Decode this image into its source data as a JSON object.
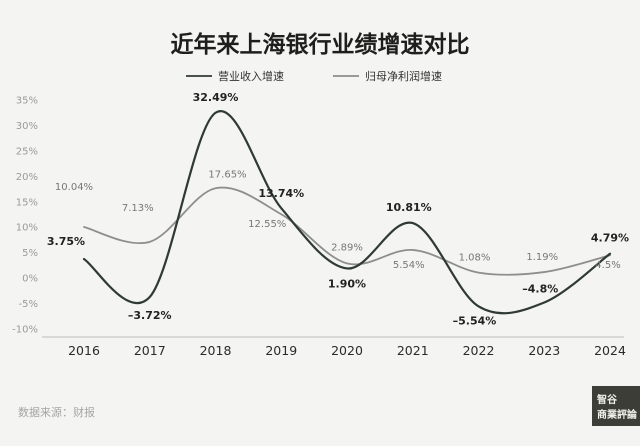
{
  "chart_data": {
    "type": "line",
    "title": "近年来上海银行业绩增速对比",
    "x": [
      "2016",
      "2017",
      "2018",
      "2019",
      "2020",
      "2021",
      "2022",
      "2023",
      "2024"
    ],
    "ylim": [
      -10,
      35
    ],
    "yticks": [
      -10,
      -5,
      0,
      5,
      10,
      15,
      20,
      25,
      30,
      35
    ],
    "ytick_labels": [
      "-10%",
      "-5%",
      "0%",
      "5%",
      "10%",
      "15%",
      "20%",
      "25%",
      "30%",
      "35%"
    ],
    "grid": false,
    "legend_position": "top",
    "series": [
      {
        "name": "营业收入增速",
        "color": "#2f3a33",
        "values": [
          3.75,
          -3.72,
          32.49,
          13.74,
          1.9,
          10.81,
          -5.54,
          -4.8,
          4.79
        ],
        "labels": [
          "3.75%",
          "–3.72%",
          "32.49%",
          "13.74%",
          "1.90%",
          "10.81%",
          "–5.54%",
          "–4.8%",
          "4.79%"
        ]
      },
      {
        "name": "归母净利润增速",
        "color": "#8e8e8e",
        "values": [
          10.04,
          7.13,
          17.65,
          12.55,
          2.89,
          5.54,
          1.08,
          1.19,
          4.5
        ],
        "labels": [
          "10.04%",
          "7.13%",
          "17.65%",
          "12.55%",
          "2.89%",
          "5.54%",
          "1.08%",
          "1.19%",
          "4.5%"
        ]
      }
    ]
  },
  "source_note": "数据来源：财报",
  "logo": {
    "line1": "智谷",
    "line2": "商業評論"
  }
}
